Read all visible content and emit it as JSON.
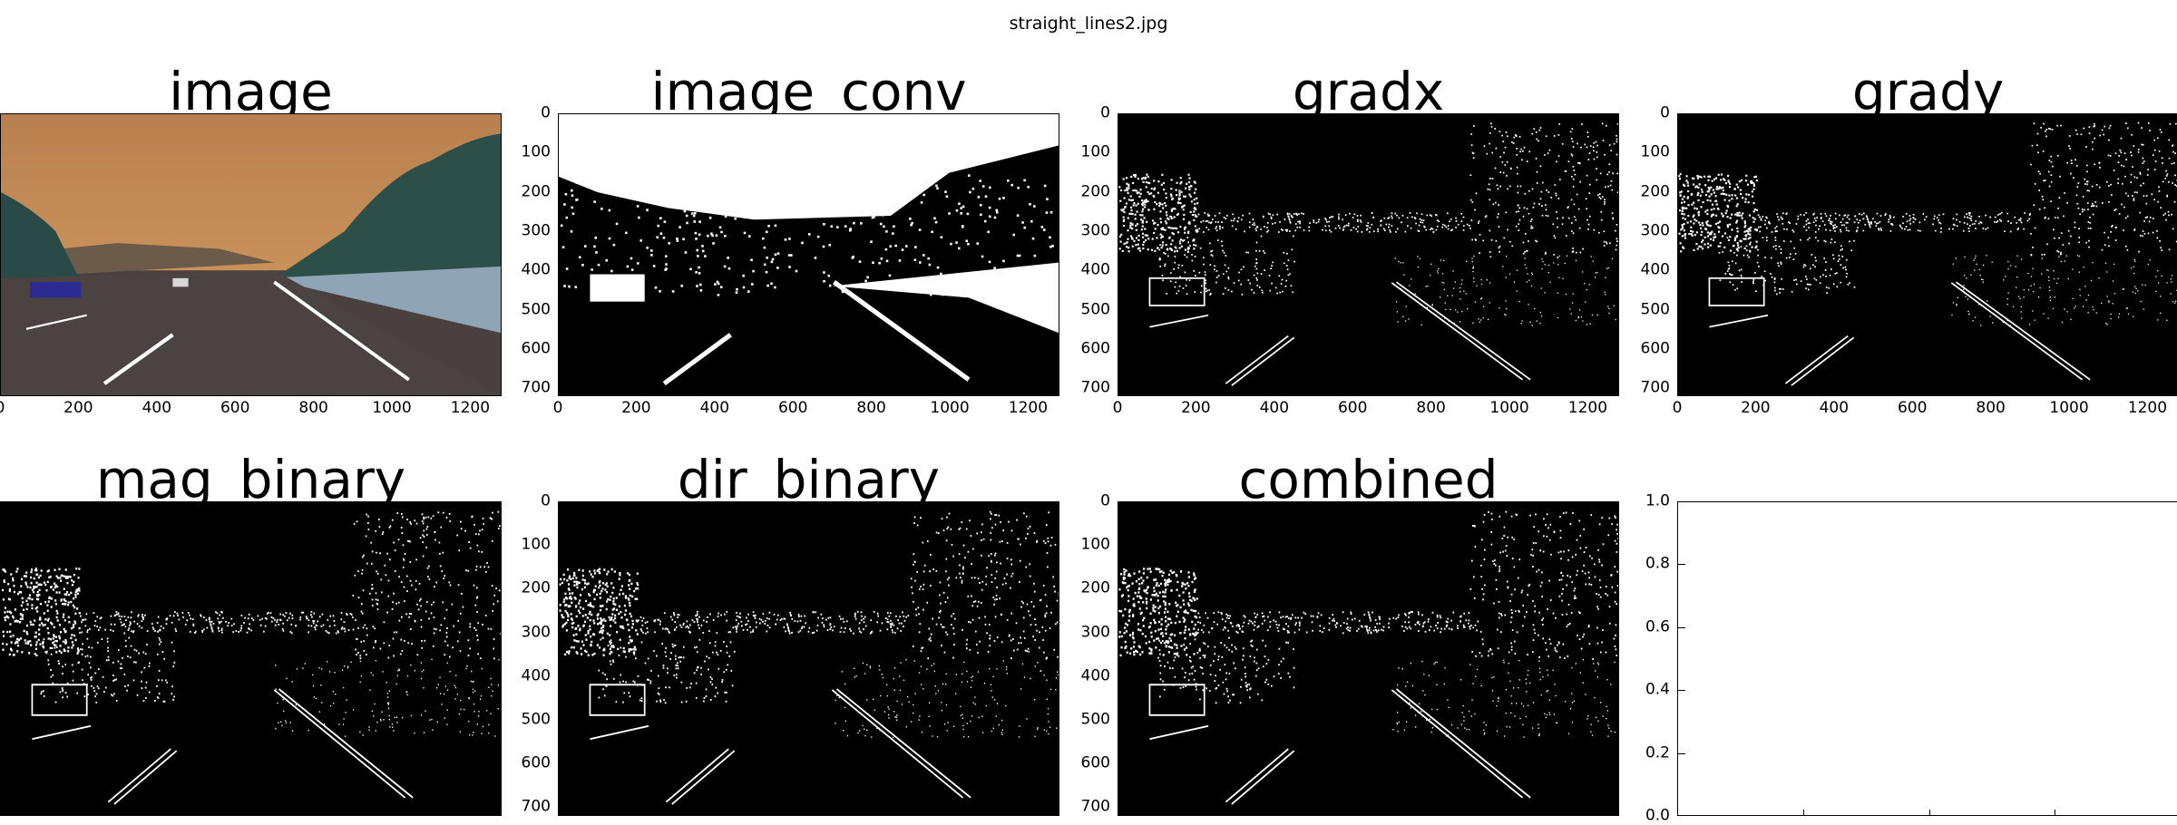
{
  "figure": {
    "suptitle": "straight_lines2.jpg"
  },
  "panels": [
    {
      "title": "image",
      "type": "photo",
      "show_yticks": false
    },
    {
      "title": "image_conv",
      "type": "binary",
      "show_yticks": true
    },
    {
      "title": "gradx",
      "type": "edges",
      "show_yticks": true
    },
    {
      "title": "grady",
      "type": "edges",
      "show_yticks": true
    },
    {
      "title": "mag_binary",
      "type": "edges",
      "show_yticks": false
    },
    {
      "title": "dir_binary",
      "type": "edges",
      "show_yticks": true
    },
    {
      "title": "combined",
      "type": "edges",
      "show_yticks": true
    },
    {
      "title": "",
      "type": "empty",
      "show_yticks": true
    }
  ],
  "image_axes": {
    "xticks": [
      "0",
      "200",
      "400",
      "600",
      "800",
      "1000",
      "1200"
    ],
    "yticks": [
      "0",
      "100",
      "200",
      "300",
      "400",
      "500",
      "600",
      "700"
    ],
    "xlim": [
      0,
      1280
    ],
    "ylim": [
      720,
      0
    ]
  },
  "empty_axes": {
    "yticks": [
      "1.0",
      "0.8",
      "0.6",
      "0.4",
      "0.2",
      "0.0"
    ],
    "ylim": [
      0,
      1
    ]
  },
  "colors": {
    "sky": "#c8915a",
    "road": "#4a4040",
    "binary_bg": "#000000",
    "binary_fg": "#ffffff"
  }
}
